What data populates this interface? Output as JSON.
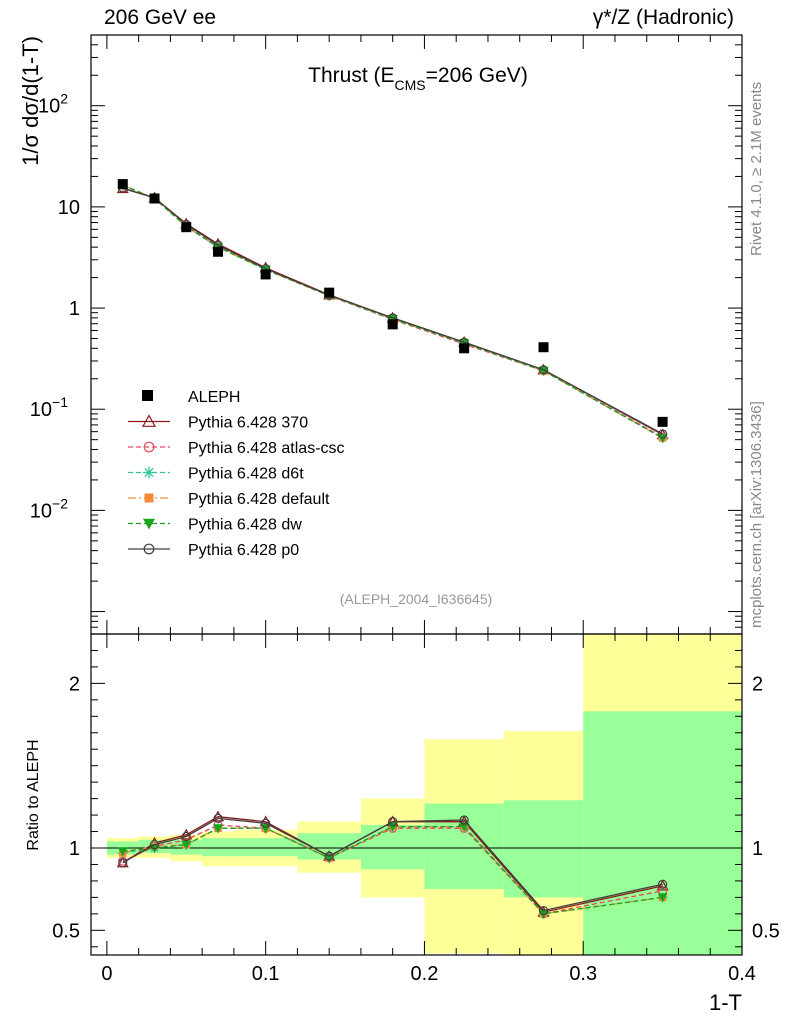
{
  "header": {
    "left": "206 GeV ee",
    "right_prefix": "γ*/Z",
    "right_text": "(Hadronic)"
  },
  "side_text": {
    "rivet": "Rivet 4.1.0, ≥ 2.1M events",
    "mcplots": "mcplots.cern.ch [arXiv:1306.3436]"
  },
  "chart_data": {
    "type": "line",
    "title_main": "Thrust (E",
    "title_sub": "CMS",
    "title_tail": "=206 GeV)",
    "ylabel": "1/σ  dσ/d(1-T)",
    "xlabel": "1-T",
    "ratio_ylabel": "Ratio to ALEPH",
    "watermark": "(ALEPH_2004_I636645)",
    "xlim": [
      -0.01,
      0.4
    ],
    "ylim": [
      0.0006,
      500
    ],
    "ratio_ylim": [
      0.35,
      2.3
    ],
    "yscale": "log",
    "x_ticks": [
      {
        "v": 0,
        "label": "0"
      },
      {
        "v": 0.1,
        "label": "0.1"
      },
      {
        "v": 0.2,
        "label": "0.2"
      },
      {
        "v": 0.3,
        "label": "0.3"
      },
      {
        "v": 0.4,
        "label": "0.4"
      }
    ],
    "y_ticks": [
      {
        "v": 100,
        "base": "10",
        "exp": "2"
      },
      {
        "v": 10,
        "base": "10",
        "exp": ""
      },
      {
        "v": 1,
        "base": "1",
        "exp": ""
      },
      {
        "v": 0.1,
        "base": "10",
        "exp": "−1"
      },
      {
        "v": 0.01,
        "base": "10",
        "exp": "−2"
      }
    ],
    "ratio_ticks": [
      {
        "v": 0.5,
        "label": "0.5"
      },
      {
        "v": 1,
        "label": "1"
      },
      {
        "v": 2,
        "label": "2"
      }
    ],
    "bins": [
      {
        "lo": 0.0,
        "hi": 0.02
      },
      {
        "lo": 0.02,
        "hi": 0.04
      },
      {
        "lo": 0.04,
        "hi": 0.06
      },
      {
        "lo": 0.06,
        "hi": 0.08
      },
      {
        "lo": 0.08,
        "hi": 0.12
      },
      {
        "lo": 0.12,
        "hi": 0.16
      },
      {
        "lo": 0.16,
        "hi": 0.2
      },
      {
        "lo": 0.2,
        "hi": 0.25
      },
      {
        "lo": 0.25,
        "hi": 0.3
      },
      {
        "lo": 0.3,
        "hi": 0.4
      }
    ],
    "x": [
      0.01,
      0.03,
      0.05,
      0.07,
      0.1,
      0.14,
      0.18,
      0.225,
      0.275,
      0.35
    ],
    "data": {
      "name": "ALEPH",
      "values": [
        16.8,
        12.1,
        6.3,
        3.6,
        2.15,
        1.42,
        0.69,
        0.4,
        0.41,
        0.075
      ],
      "band_inner": [
        [
          0.96,
          1.04
        ],
        [
          0.97,
          1.05
        ],
        [
          0.96,
          1.05
        ],
        [
          0.95,
          1.06
        ],
        [
          0.95,
          1.06
        ],
        [
          0.93,
          1.09
        ],
        [
          0.87,
          1.14
        ],
        [
          0.75,
          1.27
        ],
        [
          0.7,
          1.29
        ],
        [
          0.35,
          1.83
        ]
      ],
      "band_outer": [
        [
          0.94,
          1.06
        ],
        [
          0.94,
          1.07
        ],
        [
          0.92,
          1.08
        ],
        [
          0.89,
          1.1
        ],
        [
          0.89,
          1.11
        ],
        [
          0.85,
          1.16
        ],
        [
          0.7,
          1.3
        ],
        [
          0.36,
          1.66
        ],
        [
          0.35,
          1.71
        ],
        [
          0.35,
          2.3
        ]
      ]
    },
    "series": [
      {
        "name": "Pythia 6.428 370",
        "color": "#8b1a1a",
        "dash": "",
        "marker": "triangle-open",
        "values": [
          15.2,
          12.3,
          6.8,
          4.3,
          2.5,
          1.35,
          0.8,
          0.46,
          0.245,
          0.056
        ],
        "ratio": [
          0.91,
          1.03,
          1.08,
          1.19,
          1.16,
          0.95,
          1.16,
          1.16,
          0.61,
          0.77
        ]
      },
      {
        "name": "Pythia 6.428 atlas-csc",
        "color": "#e8475f",
        "dash": "5,3",
        "marker": "circle-open",
        "values": [
          15.5,
          12.2,
          6.6,
          4.1,
          2.4,
          1.32,
          0.77,
          0.44,
          0.24,
          0.053
        ],
        "ratio": [
          0.92,
          1.01,
          1.05,
          1.14,
          1.12,
          0.94,
          1.12,
          1.12,
          0.6,
          0.74
        ]
      },
      {
        "name": "Pythia 6.428 d6t",
        "color": "#2fc49a",
        "dash": "5,3",
        "marker": "star",
        "values": [
          16.2,
          12.1,
          6.4,
          4.0,
          2.4,
          1.33,
          0.78,
          0.45,
          0.24,
          0.052
        ],
        "ratio": [
          0.97,
          1.0,
          1.02,
          1.12,
          1.12,
          0.94,
          1.13,
          1.13,
          0.6,
          0.7
        ]
      },
      {
        "name": "Pythia 6.428 default",
        "color": "#f28a3c",
        "dash": "8,3,2,3",
        "marker": "square",
        "values": [
          16.3,
          12.2,
          6.4,
          4.0,
          2.4,
          1.33,
          0.78,
          0.45,
          0.24,
          0.052
        ],
        "ratio": [
          0.97,
          1.01,
          1.02,
          1.12,
          1.12,
          0.94,
          1.13,
          1.13,
          0.6,
          0.7
        ]
      },
      {
        "name": "Pythia 6.428 dw",
        "color": "#1ca31c",
        "dash": "5,3",
        "marker": "triangle-down",
        "values": [
          16.5,
          12.1,
          6.4,
          4.0,
          2.4,
          1.33,
          0.78,
          0.45,
          0.24,
          0.052
        ],
        "ratio": [
          0.98,
          1.0,
          1.02,
          1.12,
          1.12,
          0.94,
          1.13,
          1.13,
          0.6,
          0.7
        ]
      },
      {
        "name": "Pythia 6.428 p0",
        "color": "#404040",
        "dash": "",
        "marker": "circle-open",
        "values": [
          15.3,
          12.3,
          6.7,
          4.2,
          2.45,
          1.34,
          0.8,
          0.46,
          0.245,
          0.057
        ],
        "ratio": [
          0.91,
          1.02,
          1.07,
          1.18,
          1.15,
          0.95,
          1.16,
          1.17,
          0.62,
          0.78
        ]
      }
    ]
  }
}
